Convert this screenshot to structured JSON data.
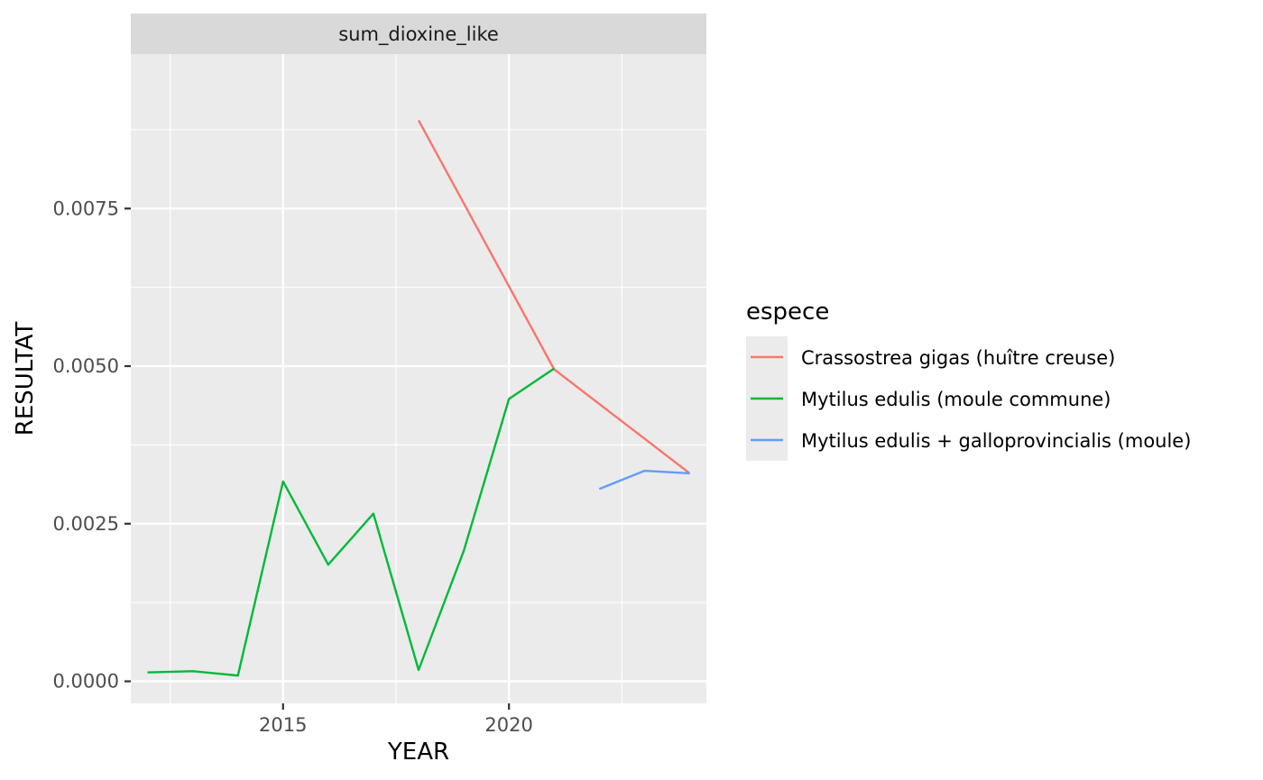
{
  "chart_data": {
    "type": "line",
    "facet_label": "sum_dioxine_like",
    "xlabel": "YEAR",
    "ylabel": "RESULTAT",
    "xlim": [
      2011.63,
      2024.37
    ],
    "ylim": [
      -0.00035,
      0.00995
    ],
    "x_ticks": [
      2015,
      2020
    ],
    "x_tick_labels": [
      "2015",
      "2020"
    ],
    "x_minor_ticks": [
      2012.5,
      2017.5,
      2022.5
    ],
    "y_ticks": [
      0.0,
      0.0025,
      0.005,
      0.0075
    ],
    "y_tick_labels": [
      "0.0000",
      "0.0025",
      "0.0050",
      "0.0075"
    ],
    "y_minor_ticks": [
      0.00125,
      0.00375,
      0.00625,
      0.00875
    ],
    "grid": true,
    "legend": {
      "title": "espece",
      "placement": "right"
    },
    "series": [
      {
        "name": "Crassostrea gigas (huître creuse)",
        "color": "#F8766D",
        "x": [
          2018,
          2021,
          2024
        ],
        "y": [
          0.0089,
          0.00495,
          0.0033
        ]
      },
      {
        "name": "Mytilus edulis (moule commune)",
        "color": "#00BA38",
        "x": [
          2012,
          2013,
          2014,
          2015,
          2016,
          2017,
          2018,
          2019,
          2020,
          2021
        ],
        "y": [
          0.00014,
          0.00016,
          9e-05,
          0.00317,
          0.00185,
          0.00266,
          0.00018,
          0.00207,
          0.00448,
          0.00496
        ]
      },
      {
        "name": "Mytilus edulis + galloprovincialis (moule)",
        "color": "#619CFF",
        "x": [
          2022,
          2023,
          2024
        ],
        "y": [
          0.00305,
          0.00334,
          0.0033
        ]
      }
    ]
  }
}
